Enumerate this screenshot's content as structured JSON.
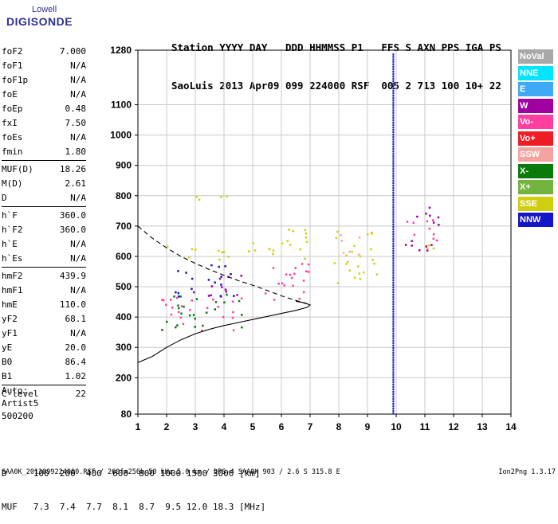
{
  "logo": {
    "top": "Lowell",
    "main": "DIGISONDE"
  },
  "header": {
    "line1": "Station YYYY DAY   DDD HHMMSS P1   FFS S AXN PPS IGA PS",
    "line2": "SaoLuis 2013 Apr09 099 224000 RSF  005 2 713 100 10+ 22"
  },
  "params": [
    [
      {
        "label": "foF2",
        "value": "7.000"
      },
      {
        "label": "foF1",
        "value": "N/A"
      },
      {
        "label": "foF1p",
        "value": "N/A"
      },
      {
        "label": "foE",
        "value": "N/A"
      },
      {
        "label": "foEp",
        "value": "0.48"
      },
      {
        "label": "fxI",
        "value": "7.50"
      },
      {
        "label": "foEs",
        "value": "N/A"
      },
      {
        "label": "fmin",
        "value": "1.80"
      }
    ],
    [
      {
        "label": "MUF(D)",
        "value": "18.26"
      },
      {
        "label": "M(D)",
        "value": "2.61"
      },
      {
        "label": "D",
        "value": "N/A"
      }
    ],
    [
      {
        "label": "h`F",
        "value": "360.0"
      },
      {
        "label": "h`F2",
        "value": "360.0"
      },
      {
        "label": "h`E",
        "value": "N/A"
      },
      {
        "label": "h`Es",
        "value": "N/A"
      }
    ],
    [
      {
        "label": "hmF2",
        "value": "439.9"
      },
      {
        "label": "hmF1",
        "value": "N/A"
      },
      {
        "label": "hmE",
        "value": "110.0"
      },
      {
        "label": "yF2",
        "value": "68.1"
      },
      {
        "label": "yF1",
        "value": "N/A"
      },
      {
        "label": "yE",
        "value": "20.0"
      },
      {
        "label": "B0",
        "value": "86.4"
      },
      {
        "label": "B1",
        "value": "1.02"
      }
    ],
    [
      {
        "label": "C-level",
        "value": "22"
      }
    ]
  ],
  "auto": {
    "line1": "Auto:",
    "line2": "Artist5",
    "line3": "500200"
  },
  "range_table": {
    "d_line": "D     100  200  400  600  800 1000 1500 3000 [km]",
    "muf_line": "MUF   7.3  7.4  7.7  8.1  8.7  9.5 12.0 18.3 [MHz]"
  },
  "footer": {
    "left": "SAA0K_2013099224000.RSF / 260fx256h 50 kHz 5.0 km / DPS-4 SAA0K 903 / 2.6 S 315.8 E",
    "right": "Ion2Png 1.3.17"
  },
  "legend": [
    {
      "label": "NoVal",
      "color": "#a8a8a8"
    },
    {
      "label": "NNE",
      "color": "#00e5ff"
    },
    {
      "label": "E",
      "color": "#3fa9f5"
    },
    {
      "label": "W",
      "color": "#a000a0"
    },
    {
      "label": "Vo-",
      "color": "#ff3fa0"
    },
    {
      "label": "Vo+",
      "color": "#ee1c24"
    },
    {
      "label": "SSW",
      "color": "#f5a3a0"
    },
    {
      "label": "X-",
      "color": "#0a7a0a"
    },
    {
      "label": "X+",
      "color": "#73b340"
    },
    {
      "label": "SSE",
      "color": "#cfcf10"
    },
    {
      "label": "NNW",
      "color": "#1414c8"
    }
  ],
  "chart_data": {
    "type": "scatter",
    "title": "",
    "xlabel": "",
    "ylabel": "",
    "xlim": [
      1,
      14
    ],
    "ylim": [
      80,
      1280
    ],
    "x_ticks": [
      "1",
      "2",
      "3",
      "4",
      "5",
      "6",
      "7",
      "8",
      "9",
      "10",
      "11",
      "12",
      "13",
      "14"
    ],
    "y_ticks": [
      "80",
      "200",
      "300",
      "400",
      "500",
      "600",
      "700",
      "800",
      "900",
      "1000",
      "1100",
      "1280"
    ],
    "grid": true,
    "clusters": [
      {
        "name": "SSE",
        "color": "#cfcf10",
        "freq": [
          2.0,
          4.6
        ],
        "height": [
          590,
          640
        ]
      },
      {
        "name": "SSE",
        "color": "#cfcf10",
        "freq": [
          4.7,
          7.0
        ],
        "height": [
          590,
          700
        ]
      },
      {
        "name": "SSE",
        "color": "#cfcf10",
        "freq": [
          7.7,
          9.3
        ],
        "height": [
          500,
          700
        ]
      },
      {
        "name": "SSE",
        "color": "#cfcf10",
        "freq": [
          3.0,
          4.4
        ],
        "height": [
          790,
          830
        ]
      },
      {
        "name": "SSE",
        "color": "#cfcf10",
        "freq": [
          10.3,
          11.4
        ],
        "height": [
          620,
          660
        ]
      },
      {
        "name": "Vo-",
        "color": "#ff3fa0",
        "freq": [
          1.8,
          4.6
        ],
        "height": [
          355,
          470
        ]
      },
      {
        "name": "W",
        "color": "#a000a0",
        "freq": [
          2.5,
          4.6
        ],
        "height": [
          460,
          540
        ]
      },
      {
        "name": "NNW",
        "color": "#1414c8",
        "freq": [
          2.2,
          4.4
        ],
        "height": [
          470,
          580
        ]
      },
      {
        "name": "X-",
        "color": "#0a7a0a",
        "freq": [
          1.8,
          4.6
        ],
        "height": [
          360,
          480
        ]
      },
      {
        "name": "Vo-",
        "color": "#ff3fa0",
        "freq": [
          5.0,
          7.0
        ],
        "height": [
          450,
          580
        ]
      },
      {
        "name": "SSW",
        "color": "#f5a3a0",
        "freq": [
          7.7,
          8.8
        ],
        "height": [
          600,
          680
        ]
      },
      {
        "name": "W",
        "color": "#a000a0",
        "freq": [
          10.3,
          11.5
        ],
        "height": [
          620,
          780
        ]
      },
      {
        "name": "Vo-",
        "color": "#ff3fa0",
        "freq": [
          10.3,
          11.5
        ],
        "height": [
          650,
          760
        ]
      }
    ],
    "vertical_marker": {
      "freq": 9.9,
      "color": "#1414c8"
    },
    "lines": [
      {
        "name": "trace-solid",
        "style": "solid",
        "points": [
          [
            1,
            250
          ],
          [
            1.5,
            270
          ],
          [
            2,
            300
          ],
          [
            2.5,
            325
          ],
          [
            3,
            345
          ],
          [
            3.5,
            360
          ],
          [
            4,
            372
          ],
          [
            4.5,
            382
          ],
          [
            5,
            392
          ],
          [
            5.5,
            402
          ],
          [
            6,
            412
          ],
          [
            6.5,
            422
          ],
          [
            6.9,
            432
          ],
          [
            7.0,
            440
          ],
          [
            6.8,
            447
          ],
          [
            6.5,
            452
          ]
        ]
      },
      {
        "name": "trace-dashed",
        "style": "dashed",
        "points": [
          [
            1,
            700
          ],
          [
            1.5,
            660
          ],
          [
            2,
            628
          ],
          [
            2.5,
            600
          ],
          [
            3,
            577
          ],
          [
            3.5,
            556
          ],
          [
            4,
            538
          ],
          [
            4.5,
            520
          ],
          [
            5,
            505
          ],
          [
            5.5,
            488
          ],
          [
            6,
            470
          ],
          [
            6.5,
            455
          ],
          [
            7,
            440
          ]
        ]
      }
    ]
  }
}
